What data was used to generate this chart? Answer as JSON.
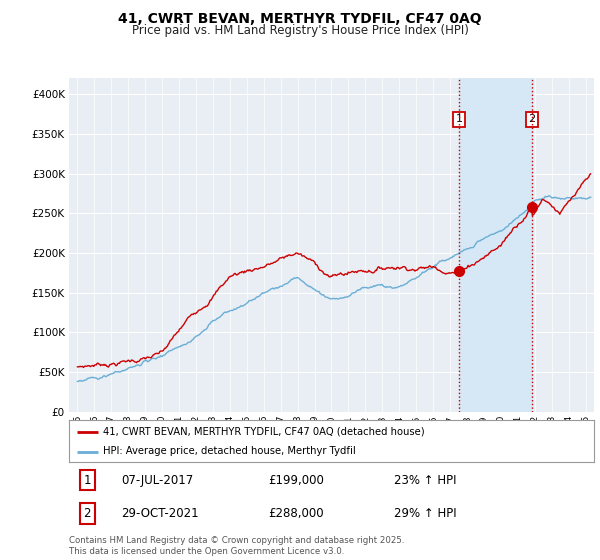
{
  "title": "41, CWRT BEVAN, MERTHYR TYDFIL, CF47 0AQ",
  "subtitle": "Price paid vs. HM Land Registry's House Price Index (HPI)",
  "legend_property": "41, CWRT BEVAN, MERTHYR TYDFIL, CF47 0AQ (detached house)",
  "legend_hpi": "HPI: Average price, detached house, Merthyr Tydfil",
  "transaction1_date": "07-JUL-2017",
  "transaction1_price": "£199,000",
  "transaction1_pct": "23% ↑ HPI",
  "transaction2_date": "29-OCT-2021",
  "transaction2_price": "£288,000",
  "transaction2_pct": "29% ↑ HPI",
  "footer": "Contains HM Land Registry data © Crown copyright and database right 2025.\nThis data is licensed under the Open Government Licence v3.0.",
  "vline1_x": 2017.52,
  "vline2_x": 2021.83,
  "vline1_price": 199000,
  "vline2_price": 288000,
  "ylim_min": 0,
  "ylim_max": 420000,
  "xlim_min": 1994.5,
  "xlim_max": 2025.5,
  "property_color": "#cc0000",
  "hpi_color": "#6aaed6",
  "vline_color": "#cc0000",
  "shade_color": "#d6e8f5",
  "background_color": "#e8eef4",
  "grid_color": "#ffffff"
}
